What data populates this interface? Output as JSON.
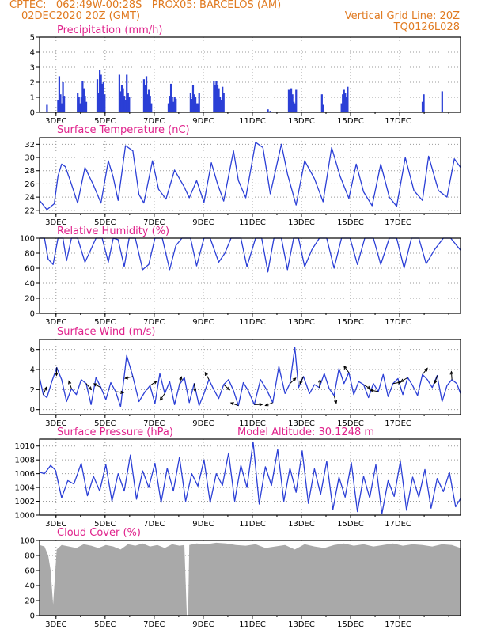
{
  "header": {
    "line1": "CPTEC:   062:49W-00:28S   PROX05: BARCELOS (AM)",
    "line2_left": "02DEC2020 20Z (GMT)",
    "line2_right": "Vertical Grid Line: 20Z",
    "line3_right": "TQ0126L028"
  },
  "colors": {
    "header": "#e07a20",
    "title": "#e0238c",
    "series": "#2b3fd6",
    "cloud": "#a9a9a9"
  },
  "x_tick_labels": [
    "3DEC",
    "5DEC",
    "7DEC",
    "9DEC",
    "11DEC",
    "13DEC",
    "15DEC",
    "17DEC"
  ],
  "chart_data": [
    {
      "type": "bar",
      "title": "Precipitation (mm/h)",
      "ylim": [
        0,
        5
      ],
      "y_ticks": [
        "0",
        "1",
        "2",
        "3",
        "4",
        "5"
      ],
      "x_unit": "days since 02DEC2020 20Z",
      "x": [
        0.3,
        0.75,
        0.8,
        0.85,
        0.9,
        0.95,
        1.0,
        1.55,
        1.6,
        1.65,
        1.7,
        1.75,
        1.8,
        1.85,
        1.9,
        2.35,
        2.4,
        2.45,
        2.5,
        2.55,
        2.6,
        2.65,
        3.25,
        3.3,
        3.35,
        3.4,
        3.45,
        3.5,
        3.55,
        3.6,
        3.65,
        4.25,
        4.3,
        4.35,
        4.4,
        4.45,
        4.5,
        4.55,
        5.25,
        5.3,
        5.35,
        5.4,
        5.45,
        5.5,
        5.55,
        6.15,
        6.2,
        6.25,
        6.3,
        6.35,
        6.4,
        6.45,
        6.5,
        7.1,
        7.15,
        7.2,
        7.25,
        7.3,
        7.35,
        7.4,
        7.45,
        7.5,
        9.3,
        9.4,
        10.15,
        10.2,
        10.25,
        10.3,
        10.35,
        10.4,
        10.45,
        11.5,
        11.55,
        12.3,
        12.35,
        12.4,
        12.45,
        12.5,
        12.55,
        15.6,
        15.65,
        16.4
      ],
      "values": [
        0.5,
        0.8,
        2.4,
        1.2,
        0.6,
        2.0,
        1.1,
        1.3,
        1.0,
        0.6,
        1.0,
        2.1,
        1.6,
        1.1,
        0.7,
        2.2,
        1.3,
        2.8,
        2.5,
        1.9,
        2.0,
        1.2,
        2.5,
        1.4,
        1.8,
        1.6,
        1.1,
        0.8,
        2.5,
        1.3,
        1.0,
        2.2,
        1.8,
        2.4,
        1.2,
        1.5,
        1.1,
        0.6,
        0.6,
        1.1,
        1.9,
        1.0,
        0.7,
        1.0,
        0.9,
        1.3,
        0.9,
        1.8,
        1.2,
        1.0,
        0.6,
        0.6,
        1.3,
        2.1,
        1.8,
        2.1,
        1.8,
        1.6,
        1.0,
        0.8,
        1.7,
        1.3,
        0.2,
        0.1,
        1.5,
        1.0,
        1.6,
        1.2,
        0.7,
        0.6,
        1.5,
        1.2,
        0.5,
        0.6,
        1.2,
        1.5,
        1.3,
        1.0,
        1.7,
        0.7,
        1.2,
        1.4
      ]
    },
    {
      "type": "line",
      "title": "Surface Temperature (nC)",
      "ylim": [
        21.5,
        33
      ],
      "y_ticks": [
        "22",
        "24",
        "26",
        "28",
        "30",
        "32"
      ],
      "x": [
        0,
        0.3,
        0.6,
        0.75,
        0.9,
        1.05,
        1.25,
        1.55,
        1.85,
        2.2,
        2.5,
        2.8,
        3.0,
        3.2,
        3.5,
        3.8,
        4.05,
        4.25,
        4.6,
        4.85,
        5.15,
        5.5,
        5.9,
        6.1,
        6.4,
        6.7,
        7.0,
        7.25,
        7.5,
        7.9,
        8.1,
        8.4,
        8.8,
        9.1,
        9.4,
        9.85,
        10.1,
        10.45,
        10.8,
        11.2,
        11.55,
        11.9,
        12.25,
        12.6,
        12.9,
        13.2,
        13.55,
        13.9,
        14.25,
        14.55,
        14.9,
        15.25,
        15.6,
        15.85,
        16.25,
        16.6,
        16.9,
        17.15
      ],
      "values": [
        23.5,
        22.1,
        23.0,
        27.2,
        29.0,
        28.6,
        26.5,
        23.1,
        28.5,
        25.8,
        23.1,
        29.5,
        27.0,
        23.5,
        31.8,
        31.0,
        24.4,
        23.1,
        29.5,
        25.2,
        23.7,
        28.1,
        25.5,
        23.9,
        26.5,
        23.2,
        29.2,
        26.0,
        23.4,
        31.0,
        26.5,
        23.9,
        32.3,
        31.5,
        24.5,
        32.0,
        27.5,
        22.8,
        29.5,
        26.8,
        23.3,
        31.5,
        27.1,
        23.8,
        29.0,
        24.8,
        22.7,
        29.0,
        24.0,
        22.6,
        30.0,
        25.0,
        23.5,
        30.2,
        25.0,
        24.0,
        29.8,
        28.5
      ]
    },
    {
      "type": "line",
      "title": "Relative Humidity (%)",
      "ylim": [
        0,
        100
      ],
      "y_ticks": [
        "0",
        "20",
        "40",
        "60",
        "80",
        "100"
      ],
      "x": [
        0,
        0.2,
        0.35,
        0.55,
        0.75,
        0.95,
        1.1,
        1.3,
        1.55,
        1.85,
        2.05,
        2.3,
        2.55,
        2.8,
        3.0,
        3.2,
        3.45,
        3.65,
        3.9,
        4.2,
        4.45,
        4.7,
        5.0,
        5.3,
        5.55,
        5.8,
        6.15,
        6.4,
        6.7,
        6.95,
        7.3,
        7.55,
        7.8,
        8.2,
        8.45,
        8.8,
        9.05,
        9.3,
        9.55,
        9.85,
        10.1,
        10.35,
        10.55,
        10.8,
        11.1,
        11.4,
        11.7,
        12.0,
        12.3,
        12.65,
        12.95,
        13.25,
        13.6,
        13.9,
        14.25,
        14.55,
        14.85,
        15.15,
        15.45,
        15.75,
        16.1,
        16.45,
        16.75,
        17.15
      ],
      "values": [
        100,
        100,
        72,
        65,
        100,
        100,
        70,
        100,
        100,
        68,
        82,
        100,
        100,
        68,
        100,
        98,
        62,
        100,
        100,
        58,
        65,
        100,
        100,
        58,
        90,
        100,
        100,
        63,
        100,
        100,
        68,
        80,
        100,
        100,
        62,
        100,
        100,
        55,
        100,
        100,
        58,
        100,
        100,
        62,
        85,
        100,
        100,
        60,
        100,
        100,
        65,
        100,
        100,
        65,
        100,
        100,
        60,
        100,
        100,
        66,
        85,
        100,
        100,
        84
      ]
    },
    {
      "type": "line",
      "title": "Surface Wind (m/s)",
      "ylim": [
        -0.5,
        7
      ],
      "y_ticks": [
        "0",
        "2",
        "4",
        "6"
      ],
      "x": [
        0,
        0.15,
        0.3,
        0.5,
        0.7,
        0.9,
        1.1,
        1.3,
        1.5,
        1.7,
        1.9,
        2.1,
        2.3,
        2.5,
        2.7,
        2.9,
        3.1,
        3.3,
        3.55,
        3.8,
        4.05,
        4.3,
        4.5,
        4.7,
        4.9,
        5.1,
        5.3,
        5.5,
        5.7,
        5.9,
        6.1,
        6.3,
        6.5,
        6.7,
        6.9,
        7.1,
        7.3,
        7.5,
        7.7,
        7.9,
        8.1,
        8.3,
        8.5,
        8.75,
        9.0,
        9.25,
        9.5,
        9.75,
        10.0,
        10.2,
        10.4,
        10.55,
        10.75,
        11.0,
        11.2,
        11.4,
        11.6,
        11.8,
        12.0,
        12.2,
        12.4,
        12.6,
        12.8,
        13.0,
        13.2,
        13.4,
        13.6,
        13.8,
        14.0,
        14.2,
        14.4,
        14.6,
        14.8,
        15.0,
        15.2,
        15.4,
        15.6,
        15.8,
        16.0,
        16.2,
        16.4,
        16.6,
        16.8,
        17.0,
        17.15
      ],
      "values": [
        3.2,
        1.5,
        1.2,
        2.8,
        4.2,
        3.0,
        0.8,
        2.1,
        1.5,
        3.0,
        2.6,
        0.5,
        3.2,
        2.2,
        1.0,
        2.7,
        1.8,
        0.3,
        5.4,
        3.3,
        0.8,
        1.8,
        2.4,
        0.6,
        3.6,
        1.6,
        2.8,
        0.5,
        2.5,
        3.2,
        0.7,
        2.6,
        0.4,
        1.6,
        3.0,
        2.0,
        1.1,
        2.5,
        3.0,
        1.9,
        0.4,
        2.7,
        1.9,
        0.5,
        3.0,
        2.0,
        0.7,
        4.3,
        1.6,
        2.6,
        6.2,
        2.2,
        3.3,
        1.6,
        2.5,
        2.2,
        3.6,
        2.1,
        1.4,
        4.1,
        2.6,
        3.7,
        1.5,
        2.8,
        2.5,
        1.2,
        2.6,
        1.8,
        3.5,
        1.3,
        2.6,
        3.1,
        1.5,
        3.2,
        2.4,
        1.4,
        3.5,
        3.0,
        2.2,
        3.4,
        0.8,
        2.4,
        3.0,
        2.6,
        1.6
      ]
    },
    {
      "type": "line",
      "title": "Surface Pressure (hPa)",
      "subtitle": "Model Altitude: 30.1248 m",
      "ylim": [
        1000,
        1011
      ],
      "y_ticks": [
        "1000",
        "1002",
        "1004",
        "1006",
        "1008",
        "1010"
      ],
      "x": [
        0,
        0.2,
        0.45,
        0.65,
        0.9,
        1.15,
        1.4,
        1.7,
        1.95,
        2.2,
        2.45,
        2.7,
        2.95,
        3.2,
        3.45,
        3.7,
        3.95,
        4.2,
        4.45,
        4.7,
        4.95,
        5.2,
        5.45,
        5.7,
        5.95,
        6.2,
        6.45,
        6.7,
        6.95,
        7.2,
        7.45,
        7.7,
        7.95,
        8.2,
        8.45,
        8.7,
        8.95,
        9.2,
        9.45,
        9.7,
        9.95,
        10.2,
        10.45,
        10.7,
        10.95,
        11.2,
        11.45,
        11.7,
        11.95,
        12.2,
        12.45,
        12.7,
        12.95,
        13.2,
        13.45,
        13.7,
        13.95,
        14.2,
        14.45,
        14.7,
        14.95,
        15.2,
        15.45,
        15.7,
        15.95,
        16.2,
        16.45,
        16.7,
        16.95,
        17.15
      ],
      "values": [
        1006.2,
        1006.0,
        1007.2,
        1006.5,
        1002.5,
        1005.0,
        1004.5,
        1007.5,
        1002.8,
        1005.6,
        1003.5,
        1007.3,
        1002.0,
        1006.0,
        1003.5,
        1008.7,
        1002.3,
        1006.4,
        1004.0,
        1007.5,
        1001.8,
        1006.8,
        1003.5,
        1008.4,
        1002.0,
        1006.0,
        1004.2,
        1008.0,
        1001.8,
        1006.0,
        1004.3,
        1009.0,
        1002.0,
        1007.2,
        1004.0,
        1010.6,
        1001.6,
        1007.0,
        1004.3,
        1009.5,
        1002.0,
        1006.8,
        1003.3,
        1009.3,
        1001.7,
        1006.7,
        1003.0,
        1007.8,
        1000.8,
        1005.5,
        1002.6,
        1007.6,
        1000.5,
        1005.6,
        1002.5,
        1007.3,
        1000.2,
        1005.0,
        1002.7,
        1007.8,
        1000.7,
        1005.5,
        1002.6,
        1006.6,
        1001.0,
        1005.3,
        1003.4,
        1006.2,
        1001.2,
        1002.4
      ]
    },
    {
      "type": "area",
      "title": "Cloud Cover (%)",
      "ylim": [
        0,
        100
      ],
      "y_ticks": [
        "0",
        "20",
        "40",
        "60",
        "80",
        "100"
      ],
      "x": [
        0,
        0.2,
        0.35,
        0.45,
        0.55,
        0.7,
        0.9,
        1.2,
        1.5,
        1.8,
        2.1,
        2.4,
        2.7,
        3.0,
        3.3,
        3.6,
        3.9,
        4.2,
        4.5,
        4.8,
        5.1,
        5.4,
        5.7,
        5.9,
        6.0,
        6.05,
        6.1,
        6.4,
        6.8,
        7.2,
        7.6,
        8.0,
        8.4,
        8.8,
        9.2,
        9.6,
        10.0,
        10.4,
        10.8,
        11.2,
        11.6,
        12.0,
        12.4,
        12.8,
        13.2,
        13.6,
        14.0,
        14.4,
        14.8,
        15.2,
        15.6,
        16.0,
        16.4,
        16.8,
        17.15
      ],
      "values": [
        94,
        92,
        80,
        60,
        15,
        88,
        94,
        92,
        90,
        95,
        93,
        90,
        94,
        92,
        88,
        95,
        93,
        96,
        92,
        94,
        90,
        95,
        93,
        94,
        0,
        0,
        94,
        96,
        95,
        97,
        96,
        94,
        93,
        95,
        90,
        92,
        94,
        88,
        95,
        92,
        90,
        94,
        96,
        93,
        95,
        92,
        94,
        96,
        93,
        95,
        94,
        92,
        95,
        94,
        90
      ]
    }
  ]
}
